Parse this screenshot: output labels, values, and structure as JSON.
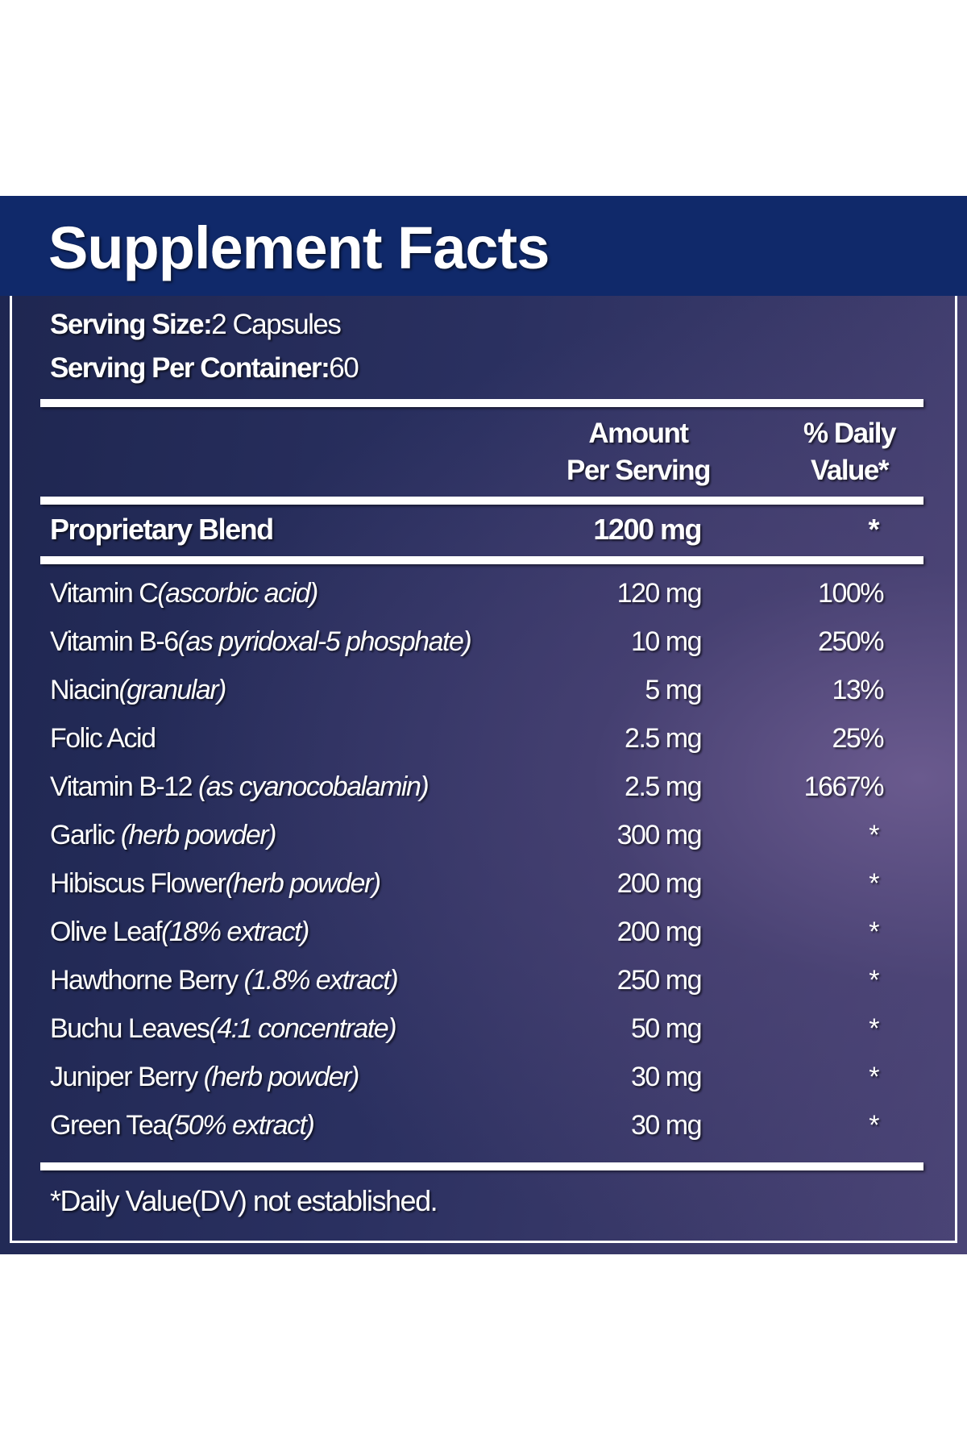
{
  "title": "Supplement Facts",
  "serving_size": {
    "label": "Serving Size:",
    "value": "2 Capsules"
  },
  "servings_per_container": {
    "label": "Serving Per Container:",
    "value": "60"
  },
  "columns": {
    "amount_line1": "Amount",
    "amount_line2": "Per Serving",
    "dv_line1": "% Daily",
    "dv_line2": "Value*"
  },
  "blend": {
    "name": "Proprietary Blend",
    "amount": "1200 mg",
    "dv": "*"
  },
  "ingredients": [
    {
      "name": "Vitamin C",
      "detail": "(ascorbic acid)",
      "amount": "120 mg",
      "dv": "100%"
    },
    {
      "name": "Vitamin B-6",
      "detail": "(as pyridoxal-5 phosphate)",
      "amount": "10 mg",
      "dv": "250%"
    },
    {
      "name": "Niacin",
      "detail": "(granular)",
      "amount": "5 mg",
      "dv": "13%"
    },
    {
      "name": "Folic Acid",
      "detail": "",
      "amount": "2.5 mg",
      "dv": "25%"
    },
    {
      "name": "Vitamin B-12 ",
      "detail": "(as cyanocobalamin)",
      "amount": "2.5 mg",
      "dv": "1667%"
    },
    {
      "name": "Garlic ",
      "detail": "(herb powder)",
      "amount": "300 mg",
      "dv": "*"
    },
    {
      "name": "Hibiscus Flower",
      "detail": "(herb powder)",
      "amount": "200 mg",
      "dv": "*"
    },
    {
      "name": "Olive Leaf",
      "detail": "(18% extract)",
      "amount": "200 mg",
      "dv": "*"
    },
    {
      "name": "Hawthorne Berry ",
      "detail": "(1.8% extract)",
      "amount": "250 mg",
      "dv": "*"
    },
    {
      "name": "Buchu Leaves",
      "detail": "(4:1 concentrate)",
      "amount": "50 mg",
      "dv": "*"
    },
    {
      "name": "Juniper Berry ",
      "detail": "(herb powder)",
      "amount": "30 mg",
      "dv": "*"
    },
    {
      "name": "Green Tea",
      "detail": "(50% extract)",
      "amount": "30 mg",
      "dv": "*"
    }
  ],
  "footnote": "*Daily Value(DV) not established."
}
